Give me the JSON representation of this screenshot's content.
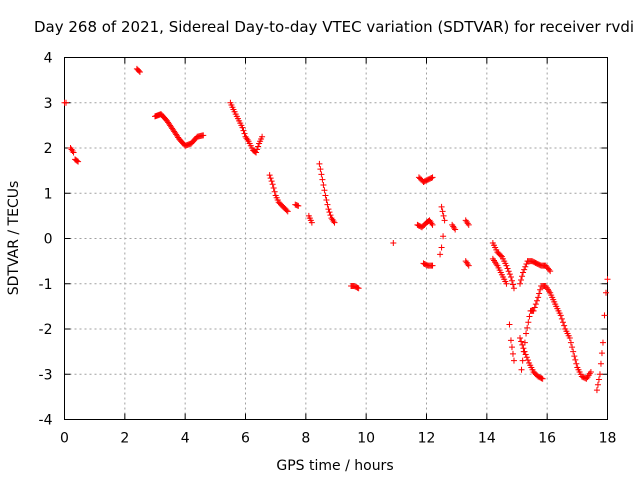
{
  "chart_data": {
    "type": "scatter",
    "title": "Day 268 of 2021, Sidereal Day-to-day VTEC variation (SDTVAR) for receiver rvdi",
    "xlabel": "GPS time / hours",
    "ylabel": "SDTVAR / TECUs",
    "xlim": [
      0,
      18
    ],
    "ylim": [
      -4,
      4
    ],
    "xticks": [
      0,
      2,
      4,
      6,
      8,
      10,
      12,
      14,
      16,
      18
    ],
    "yticks": [
      -4,
      -3,
      -2,
      -1,
      0,
      1,
      2,
      3,
      4
    ],
    "grid": true,
    "marker": "+",
    "color": "#ff0000",
    "segments": [
      {
        "pts": [
          [
            0.0,
            3.0
          ],
          [
            0.05,
            3.0
          ]
        ]
      },
      {
        "pts": [
          [
            0.2,
            2.0
          ],
          [
            0.3,
            1.9
          ],
          [
            0.35,
            1.75
          ],
          [
            0.45,
            1.7
          ]
        ]
      },
      {
        "pts": [
          [
            2.4,
            3.75
          ],
          [
            2.5,
            3.68
          ]
        ]
      },
      {
        "pts": [
          [
            3.0,
            2.7
          ],
          [
            3.2,
            2.75
          ],
          [
            3.4,
            2.6
          ],
          [
            3.6,
            2.4
          ],
          [
            3.8,
            2.2
          ],
          [
            4.0,
            2.05
          ],
          [
            4.2,
            2.1
          ],
          [
            4.4,
            2.25
          ],
          [
            4.6,
            2.28
          ]
        ]
      },
      {
        "pts": [
          [
            5.5,
            3.0
          ],
          [
            5.6,
            2.85
          ],
          [
            5.75,
            2.65
          ],
          [
            5.9,
            2.45
          ],
          [
            6.0,
            2.25
          ],
          [
            6.1,
            2.15
          ],
          [
            6.25,
            1.95
          ],
          [
            6.35,
            1.9
          ],
          [
            6.45,
            2.1
          ],
          [
            6.55,
            2.25
          ]
        ]
      },
      {
        "pts": [
          [
            6.8,
            1.4
          ],
          [
            6.9,
            1.2
          ],
          [
            7.0,
            0.95
          ],
          [
            7.1,
            0.8
          ],
          [
            7.25,
            0.7
          ],
          [
            7.4,
            0.6
          ]
        ]
      },
      {
        "pts": [
          [
            7.65,
            0.75
          ],
          [
            7.75,
            0.72
          ]
        ]
      },
      {
        "pts": [
          [
            8.1,
            0.5
          ],
          [
            8.2,
            0.35
          ]
        ]
      },
      {
        "pts": [
          [
            8.45,
            1.65
          ],
          [
            8.55,
            1.3
          ],
          [
            8.65,
            0.95
          ],
          [
            8.75,
            0.65
          ],
          [
            8.85,
            0.45
          ],
          [
            8.95,
            0.35
          ]
        ]
      },
      {
        "pts": [
          [
            9.5,
            -1.05
          ],
          [
            9.6,
            -1.05
          ],
          [
            9.75,
            -1.1
          ]
        ]
      },
      {
        "pts": [
          [
            10.9,
            -0.1
          ]
        ]
      },
      {
        "pts": [
          [
            11.75,
            1.35
          ],
          [
            11.9,
            1.25
          ],
          [
            12.05,
            1.3
          ],
          [
            12.2,
            1.35
          ]
        ]
      },
      {
        "pts": [
          [
            11.7,
            0.3
          ],
          [
            11.85,
            0.25
          ],
          [
            12.0,
            0.35
          ],
          [
            12.1,
            0.4
          ],
          [
            12.2,
            0.3
          ]
        ]
      },
      {
        "pts": [
          [
            11.9,
            -0.55
          ],
          [
            12.05,
            -0.6
          ],
          [
            12.2,
            -0.6
          ]
        ]
      },
      {
        "pts": [
          [
            12.5,
            0.7
          ],
          [
            12.6,
            0.4
          ],
          [
            12.55,
            0.05
          ],
          [
            12.5,
            -0.2
          ],
          [
            12.45,
            -0.35
          ]
        ]
      },
      {
        "pts": [
          [
            12.85,
            0.3
          ],
          [
            12.95,
            0.2
          ]
        ]
      },
      {
        "pts": [
          [
            13.3,
            0.4
          ],
          [
            13.4,
            0.3
          ]
        ]
      },
      {
        "pts": [
          [
            13.3,
            -0.5
          ],
          [
            13.4,
            -0.6
          ]
        ]
      },
      {
        "pts": [
          [
            14.2,
            -0.1
          ],
          [
            14.35,
            -0.3
          ],
          [
            14.5,
            -0.4
          ],
          [
            14.65,
            -0.6
          ],
          [
            14.8,
            -0.85
          ],
          [
            14.9,
            -1.1
          ]
        ]
      },
      {
        "pts": [
          [
            14.2,
            -0.45
          ],
          [
            14.35,
            -0.6
          ],
          [
            14.5,
            -0.8
          ],
          [
            14.65,
            -1.0
          ]
        ]
      },
      {
        "pts": [
          [
            14.75,
            -1.9
          ],
          [
            14.8,
            -2.25
          ],
          [
            14.9,
            -2.7
          ]
        ]
      },
      {
        "pts": [
          [
            15.1,
            -1.0
          ],
          [
            15.2,
            -0.75
          ],
          [
            15.35,
            -0.5
          ],
          [
            15.5,
            -0.5
          ],
          [
            15.65,
            -0.55
          ],
          [
            15.8,
            -0.6
          ],
          [
            15.95,
            -0.6
          ],
          [
            16.1,
            -0.72
          ]
        ]
      },
      {
        "pts": [
          [
            15.15,
            -2.9
          ],
          [
            15.3,
            -2.1
          ],
          [
            15.45,
            -1.6
          ],
          [
            15.55,
            -1.6
          ],
          [
            15.7,
            -1.3
          ],
          [
            15.8,
            -1.05
          ],
          [
            15.95,
            -1.05
          ],
          [
            16.1,
            -1.2
          ],
          [
            16.3,
            -1.5
          ],
          [
            16.45,
            -1.7
          ],
          [
            16.6,
            -2.0
          ],
          [
            16.75,
            -2.2
          ],
          [
            16.9,
            -2.6
          ],
          [
            17.0,
            -2.85
          ],
          [
            17.15,
            -3.05
          ],
          [
            17.3,
            -3.1
          ],
          [
            17.45,
            -2.95
          ]
        ]
      },
      {
        "pts": [
          [
            15.1,
            -2.2
          ],
          [
            15.25,
            -2.5
          ],
          [
            15.4,
            -2.75
          ],
          [
            15.55,
            -2.95
          ],
          [
            15.7,
            -3.05
          ],
          [
            15.85,
            -3.1
          ]
        ]
      },
      {
        "pts": [
          [
            17.65,
            -3.35
          ],
          [
            17.75,
            -3.0
          ],
          [
            17.85,
            -2.3
          ],
          [
            17.9,
            -1.7
          ],
          [
            17.95,
            -1.2
          ],
          [
            18.0,
            -0.9
          ]
        ]
      }
    ]
  }
}
